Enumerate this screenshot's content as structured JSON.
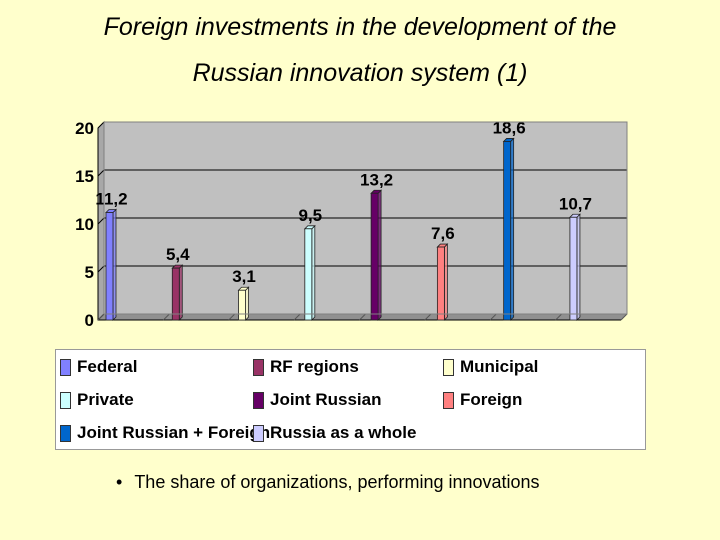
{
  "slide": {
    "title_line1": "Foreign investments in the development of the",
    "title_line2": "Russian innovation system (1)",
    "bullet": "•",
    "footer_text": "The share of organizations, performing innovations"
  },
  "chart_data": {
    "type": "bar",
    "title": "",
    "xlabel": "",
    "ylabel": "",
    "ylim": [
      0,
      20
    ],
    "yticks": [
      0,
      5,
      10,
      15,
      20
    ],
    "grid": true,
    "legend_position": "bottom",
    "series": [
      {
        "name": "Federal",
        "value": 11.2,
        "label": "11,2",
        "color": "#8080ff"
      },
      {
        "name": "RF regions",
        "value": 5.4,
        "label": "5,4",
        "color": "#993366"
      },
      {
        "name": "Municipal",
        "value": 3.1,
        "label": "3,1",
        "color": "#ffffcc"
      },
      {
        "name": "Private",
        "value": 9.5,
        "label": "9,5",
        "color": "#ccffff"
      },
      {
        "name": "Joint Russian",
        "value": 13.2,
        "label": "13,2",
        "color": "#660066"
      },
      {
        "name": "Foreign",
        "value": 7.6,
        "label": "7,6",
        "color": "#ff8080"
      },
      {
        "name": "Joint Russian + Foreign",
        "value": 18.6,
        "label": "18,6",
        "color": "#0066cc"
      },
      {
        "name": "Russia as a whole",
        "value": 10.7,
        "label": "10,7",
        "color": "#ccccff"
      }
    ]
  }
}
